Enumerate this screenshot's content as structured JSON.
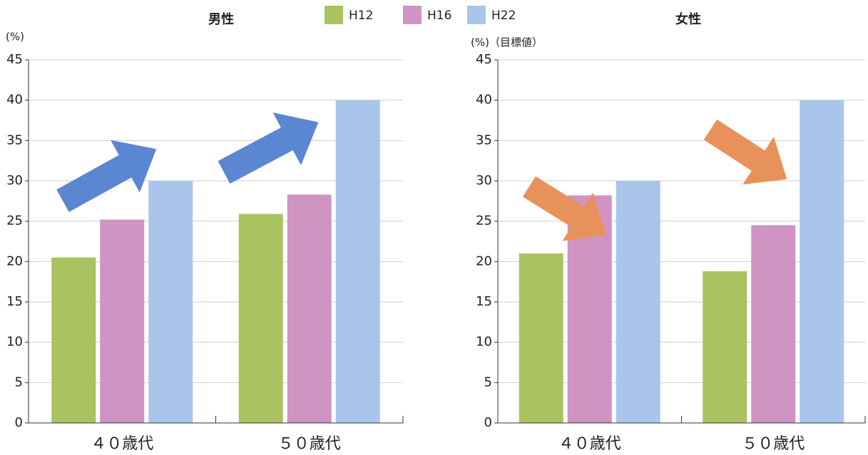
{
  "chart_data": [
    {
      "type": "bar",
      "title": "男性",
      "y_label": "(%)",
      "categories": [
        "４０歳代",
        "５０歳代"
      ],
      "series": [
        {
          "name": "H12",
          "color": "#a8c35f",
          "values": [
            20.5,
            25.9
          ]
        },
        {
          "name": "H16",
          "color": "#cf93c4",
          "values": [
            25.2,
            28.3
          ]
        },
        {
          "name": "H22",
          "color": "#a9c5ea",
          "values": [
            30,
            40
          ]
        }
      ],
      "ylim": [
        0,
        45
      ],
      "yticks": [
        0,
        5,
        10,
        15,
        20,
        25,
        30,
        35,
        40,
        45
      ],
      "grid": true
    },
    {
      "type": "bar",
      "title": "女性",
      "y_label": "(%)（目標値）",
      "categories": [
        "４０歳代",
        "５０歳代"
      ],
      "series": [
        {
          "color": "#a8c35f",
          "values": [
            21.0,
            18.8
          ]
        },
        {
          "color": "#cf93c4",
          "values": [
            28.2,
            24.5
          ]
        },
        {
          "color": "#a9c5ea",
          "values": [
            30,
            40
          ]
        }
      ],
      "ylim": [
        0,
        45
      ],
      "yticks": [
        0,
        5,
        10,
        15,
        20,
        25,
        30,
        35,
        40,
        45
      ],
      "grid": true
    }
  ]
}
